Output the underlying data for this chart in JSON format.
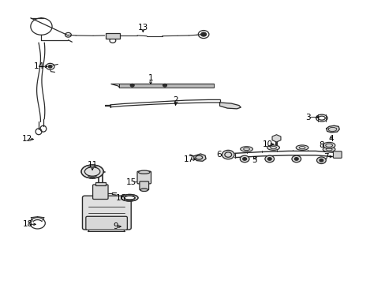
{
  "bg_color": "#ffffff",
  "line_color": "#2a2a2a",
  "figsize": [
    4.89,
    3.6
  ],
  "dpi": 100,
  "labels": {
    "1": [
      0.39,
      0.695,
      0.39,
      0.727
    ],
    "2": [
      0.455,
      0.62,
      0.455,
      0.648
    ],
    "3": [
      0.836,
      0.588,
      0.8,
      0.588
    ],
    "4": [
      0.86,
      0.53,
      0.86,
      0.51
    ],
    "5": [
      0.67,
      0.455,
      0.66,
      0.435
    ],
    "6": [
      0.59,
      0.455,
      0.568,
      0.455
    ],
    "7": [
      0.87,
      0.448,
      0.848,
      0.448
    ],
    "8": [
      0.852,
      0.48,
      0.835,
      0.49
    ],
    "9": [
      0.32,
      0.2,
      0.298,
      0.2
    ],
    "10": [
      0.718,
      0.492,
      0.696,
      0.492
    ],
    "11": [
      0.238,
      0.39,
      0.238,
      0.418
    ],
    "12": [
      0.092,
      0.51,
      0.068,
      0.51
    ],
    "13": [
      0.37,
      0.88,
      0.37,
      0.905
    ],
    "14": [
      0.128,
      0.768,
      0.098,
      0.768
    ],
    "15": [
      0.372,
      0.358,
      0.34,
      0.358
    ],
    "16": [
      0.34,
      0.302,
      0.312,
      0.302
    ],
    "17": [
      0.514,
      0.438,
      0.49,
      0.438
    ],
    "18": [
      0.098,
      0.208,
      0.07,
      0.208
    ]
  }
}
